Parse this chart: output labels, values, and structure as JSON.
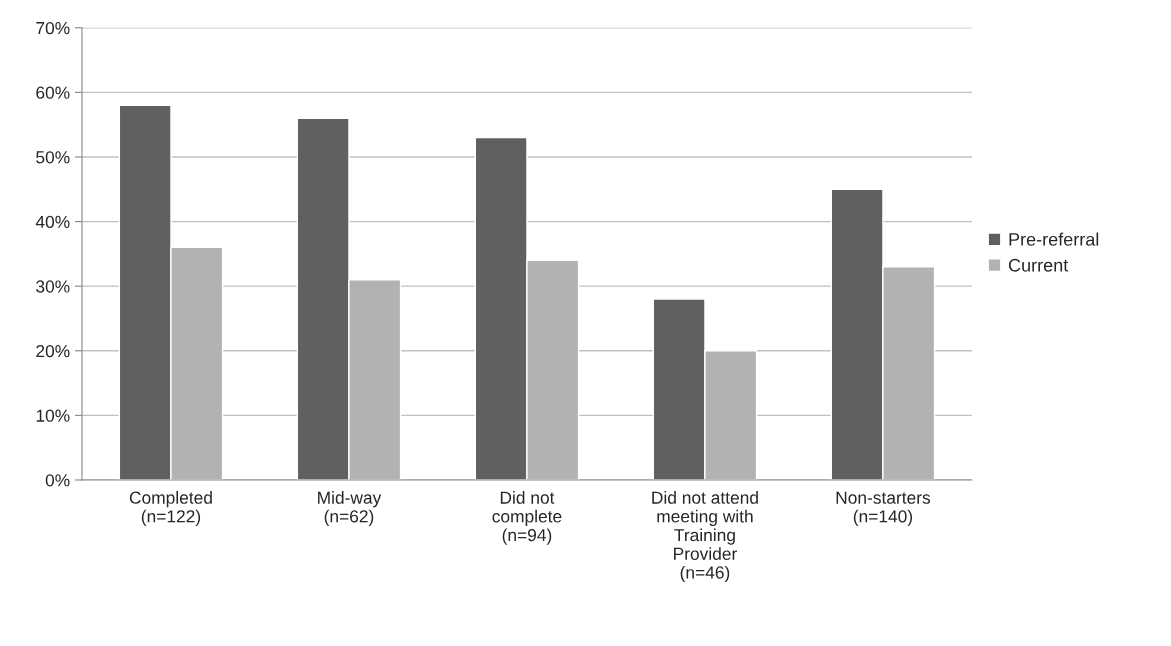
{
  "chart_data": {
    "type": "bar",
    "categories": [
      "Completed\n(n=122)",
      "Mid-way\n(n=62)",
      "Did not\ncomplete\n(n=94)",
      "Did not attend\nmeeting with\nTraining\nProvider\n(n=46)",
      "Non-starters\n(n=140)"
    ],
    "series": [
      {
        "name": "Pre-referral",
        "color": "#606060",
        "values": [
          58,
          56,
          53,
          28,
          45
        ]
      },
      {
        "name": "Current",
        "color": "#b2b2b2",
        "values": [
          36,
          31,
          34,
          20,
          33
        ]
      }
    ],
    "ylim": [
      0,
      70
    ],
    "yticks": [
      {
        "value": 0,
        "label": "0%"
      },
      {
        "value": 10,
        "label": "10%"
      },
      {
        "value": 20,
        "label": "20%"
      },
      {
        "value": 30,
        "label": "30%"
      },
      {
        "value": 40,
        "label": "40%"
      },
      {
        "value": 50,
        "label": "50%"
      },
      {
        "value": 60,
        "label": "60%"
      },
      {
        "value": 70,
        "label": "70%"
      }
    ],
    "grid": "y",
    "legend": "right"
  }
}
